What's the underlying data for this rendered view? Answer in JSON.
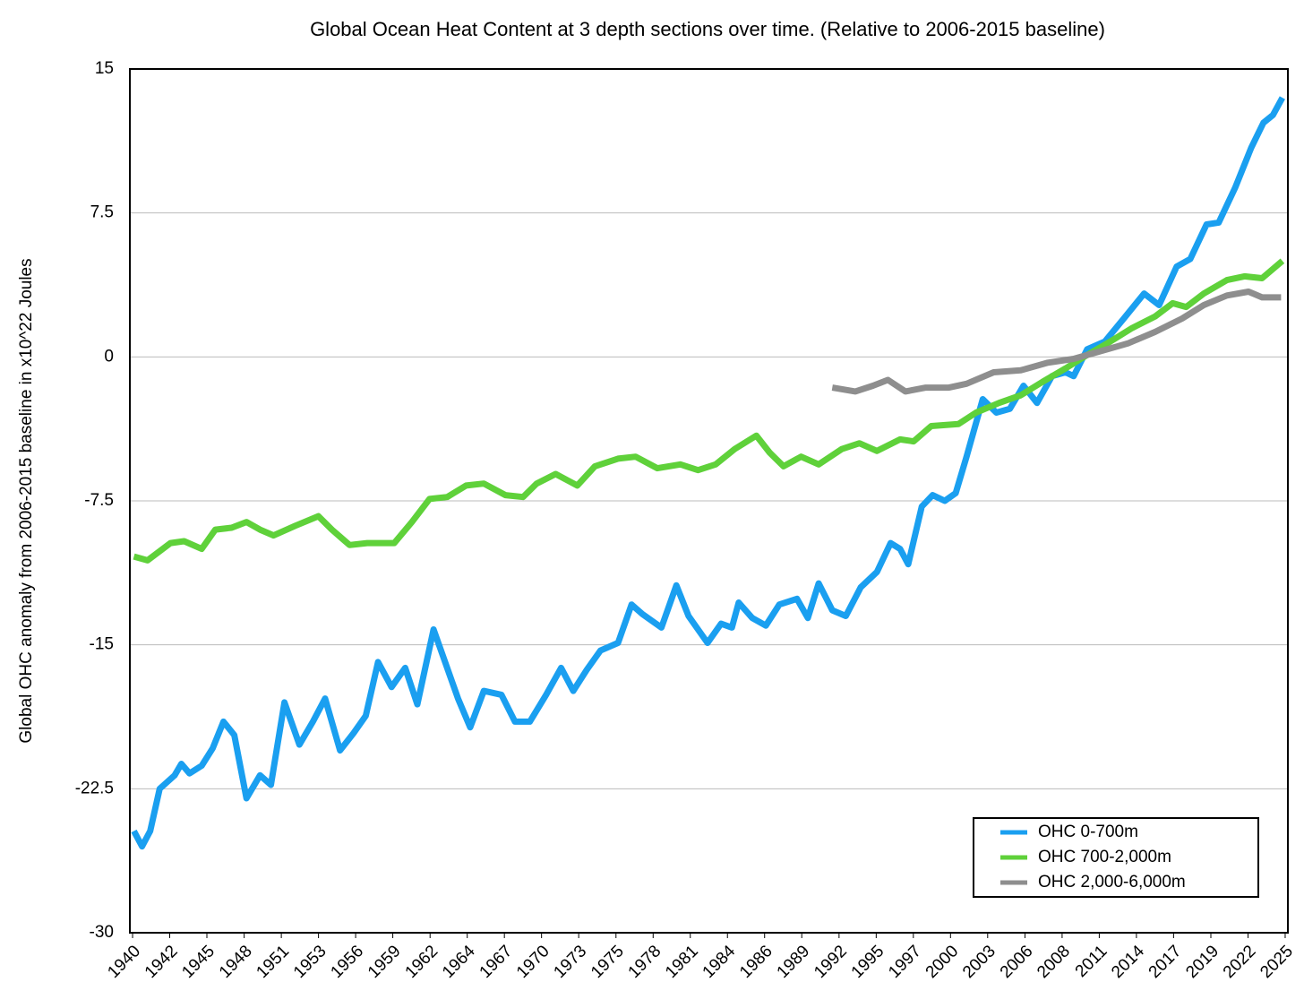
{
  "chart_data": {
    "type": "line",
    "title": "Global Ocean Heat Content at 3 depth sections over time. (Relative to 2006-2015 baseline)",
    "y_label": "Global OHC anomaly from 2006-2015 baseline in x10^22 Joules",
    "xlim": [
      1939.8,
      2025.2
    ],
    "ylim": [
      -30,
      15
    ],
    "yticks": [
      15,
      7.5,
      0,
      -7.5,
      -15,
      -22.5,
      -30
    ],
    "xticks": [
      {
        "value": 1940,
        "label": "1940"
      },
      {
        "value": 1942.74,
        "label": "1942"
      },
      {
        "value": 1945.48,
        "label": "1945"
      },
      {
        "value": 1948.23,
        "label": "1948"
      },
      {
        "value": 1950.97,
        "label": "1951"
      },
      {
        "value": 1953.71,
        "label": "1953"
      },
      {
        "value": 1956.45,
        "label": "1956"
      },
      {
        "value": 1959.19,
        "label": "1959"
      },
      {
        "value": 1961.94,
        "label": "1962"
      },
      {
        "value": 1964.68,
        "label": "1964"
      },
      {
        "value": 1967.42,
        "label": "1967"
      },
      {
        "value": 1970.16,
        "label": "1970"
      },
      {
        "value": 1972.9,
        "label": "1973"
      },
      {
        "value": 1975.65,
        "label": "1975"
      },
      {
        "value": 1978.39,
        "label": "1978"
      },
      {
        "value": 1981.13,
        "label": "1981"
      },
      {
        "value": 1983.87,
        "label": "1984"
      },
      {
        "value": 1986.61,
        "label": "1986"
      },
      {
        "value": 1989.35,
        "label": "1989"
      },
      {
        "value": 1992.1,
        "label": "1992"
      },
      {
        "value": 1994.84,
        "label": "1995"
      },
      {
        "value": 1997.58,
        "label": "1997"
      },
      {
        "value": 2000.32,
        "label": "2000"
      },
      {
        "value": 2003.06,
        "label": "2003"
      },
      {
        "value": 2005.81,
        "label": "2006"
      },
      {
        "value": 2008.55,
        "label": "2008"
      },
      {
        "value": 2011.29,
        "label": "2011"
      },
      {
        "value": 2014.03,
        "label": "2014"
      },
      {
        "value": 2016.77,
        "label": "2017"
      },
      {
        "value": 2019.52,
        "label": "2019"
      },
      {
        "value": 2022.26,
        "label": "2022"
      },
      {
        "value": 2025,
        "label": "2025"
      }
    ],
    "grid": true,
    "legend": "lower right",
    "series": [
      {
        "name": "OHC 0-700m",
        "color": "#1a9ff0",
        "x": [
          1940.1,
          1940.7,
          1941.3,
          1942,
          1943.1,
          1943.6,
          1944.2,
          1945.1,
          1945.9,
          1946.7,
          1947.5,
          1948.4,
          1949.4,
          1950.2,
          1951.2,
          1952.3,
          1953.3,
          1954.2,
          1955.3,
          1956.3,
          1957.2,
          1958.1,
          1959.1,
          1960.1,
          1961,
          1962.2,
          1963.2,
          1964,
          1964.9,
          1965.9,
          1967.2,
          1968.2,
          1969.3,
          1970.5,
          1971.6,
          1972.5,
          1973.5,
          1974.5,
          1975.8,
          1976.8,
          1977.6,
          1979,
          1980.1,
          1981,
          1982.4,
          1983.4,
          1984.2,
          1984.7,
          1985.7,
          1986.7,
          1987.7,
          1989,
          1989.8,
          1990.6,
          1991.6,
          1992.6,
          1993.7,
          1994.9,
          1995.9,
          1996.6,
          1997.2,
          1998.2,
          1999,
          1999.9,
          2000.7,
          2001.5,
          2002.7,
          2003.7,
          2004.7,
          2005.7,
          2006.7,
          2007.8,
          2008.8,
          2009.4,
          2010.4,
          2011.7,
          2013.1,
          2014.6,
          2015.7,
          2017,
          2018,
          2019.2,
          2020.1,
          2021.3,
          2022.5,
          2023.4,
          2024.1,
          2024.8
        ],
        "values": [
          -24.7,
          -25.5,
          -24.7,
          -22.5,
          -21.8,
          -21.2,
          -21.7,
          -21.3,
          -20.4,
          -19,
          -19.7,
          -23,
          -21.8,
          -22.3,
          -18,
          -20.2,
          -19,
          -17.8,
          -20.5,
          -19.6,
          -18.7,
          -15.9,
          -17.2,
          -16.2,
          -18.1,
          -14.2,
          -16.2,
          -17.8,
          -19.3,
          -17.4,
          -17.6,
          -19,
          -19,
          -17.6,
          -16.2,
          -17.4,
          -16.3,
          -15.3,
          -14.9,
          -12.9,
          -13.4,
          -14.1,
          -11.9,
          -13.5,
          -14.9,
          -13.9,
          -14.1,
          -12.8,
          -13.6,
          -14,
          -12.9,
          -12.6,
          -13.6,
          -11.8,
          -13.2,
          -13.5,
          -12,
          -11.2,
          -9.7,
          -10,
          -10.8,
          -7.8,
          -7.2,
          -7.5,
          -7.1,
          -5.2,
          -2.2,
          -2.9,
          -2.7,
          -1.5,
          -2.4,
          -1,
          -0.8,
          -1,
          0.4,
          0.8,
          2,
          3.3,
          2.7,
          4.7,
          5.1,
          6.9,
          7,
          8.8,
          10.9,
          12.2,
          12.6,
          13.5
        ]
      },
      {
        "name": "OHC 700-2,000m",
        "color": "#5fd13a",
        "x": [
          1940.1,
          1941.1,
          1942.8,
          1943.8,
          1945.1,
          1946.1,
          1947.3,
          1948.4,
          1949.4,
          1950.4,
          1952,
          1953.7,
          1954.7,
          1956,
          1957.3,
          1959.3,
          1960.6,
          1961.9,
          1963.2,
          1964.6,
          1965.9,
          1967.5,
          1968.8,
          1969.8,
          1971.2,
          1972.8,
          1974.1,
          1975.8,
          1977.1,
          1978.7,
          1980.4,
          1981.7,
          1983,
          1984.4,
          1986,
          1987,
          1988,
          1989.3,
          1990.6,
          1992.3,
          1993.6,
          1994.9,
          1996.6,
          1997.6,
          1998.9,
          2000.9,
          2002.2,
          2003.9,
          2005.5,
          2007.1,
          2008.8,
          2010.4,
          2012.1,
          2013.7,
          2015.4,
          2016.7,
          2017.7,
          2019,
          2020.7,
          2022,
          2023.3,
          2024.8
        ],
        "values": [
          -10.4,
          -10.6,
          -9.7,
          -9.6,
          -10,
          -9,
          -8.9,
          -8.6,
          -9,
          -9.3,
          -8.8,
          -8.3,
          -9,
          -9.8,
          -9.7,
          -9.7,
          -8.6,
          -7.4,
          -7.3,
          -6.7,
          -6.6,
          -7.2,
          -7.3,
          -6.6,
          -6.1,
          -6.7,
          -5.7,
          -5.3,
          -5.2,
          -5.8,
          -5.6,
          -5.9,
          -5.6,
          -4.8,
          -4.1,
          -5,
          -5.7,
          -5.2,
          -5.6,
          -4.8,
          -4.5,
          -4.9,
          -4.3,
          -4.4,
          -3.6,
          -3.5,
          -2.9,
          -2.4,
          -2,
          -1.3,
          -0.6,
          0.1,
          0.8,
          1.5,
          2.1,
          2.8,
          2.6,
          3.3,
          4,
          4.2,
          4.1,
          5
        ]
      },
      {
        "name": "OHC 2,000-6,000m",
        "color": "#8e8e8e",
        "x": [
          1991.6,
          1993.3,
          1994.6,
          1995.7,
          1997,
          1998.5,
          2000.2,
          2001.5,
          2003.5,
          2005.5,
          2007.5,
          2009.4,
          2011.4,
          2013.4,
          2015.4,
          2017.4,
          2019,
          2020.7,
          2022.3,
          2023.3,
          2024.7
        ],
        "values": [
          -1.6,
          -1.8,
          -1.5,
          -1.2,
          -1.8,
          -1.6,
          -1.6,
          -1.4,
          -0.8,
          -0.7,
          -0.3,
          -0.1,
          0.3,
          0.7,
          1.3,
          2,
          2.7,
          3.2,
          3.4,
          3.1,
          3.1
        ]
      }
    ]
  }
}
